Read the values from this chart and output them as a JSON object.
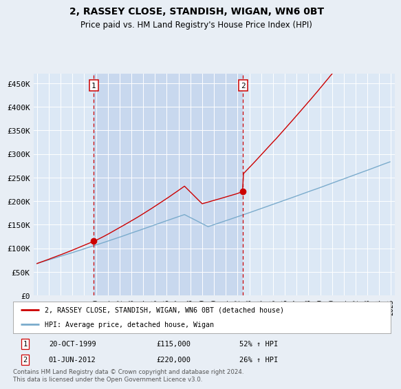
{
  "title": "2, RASSEY CLOSE, STANDISH, WIGAN, WN6 0BT",
  "subtitle": "Price paid vs. HM Land Registry's House Price Index (HPI)",
  "background_color": "#e8eef5",
  "plot_bg_color": "#dce8f5",
  "shade_color": "#c8d8ee",
  "legend_label_red": "2, RASSEY CLOSE, STANDISH, WIGAN, WN6 0BT (detached house)",
  "legend_label_blue": "HPI: Average price, detached house, Wigan",
  "footer": "Contains HM Land Registry data © Crown copyright and database right 2024.\nThis data is licensed under the Open Government Licence v3.0.",
  "sale1_date": "20-OCT-1999",
  "sale1_price": 115000,
  "sale1_price_str": "£115,000",
  "sale1_hpi": "52% ↑ HPI",
  "sale2_date": "01-JUN-2012",
  "sale2_price": 220000,
  "sale2_price_str": "£220,000",
  "sale2_hpi": "26% ↑ HPI",
  "ylim": [
    0,
    470000
  ],
  "yticks": [
    0,
    50000,
    100000,
    150000,
    200000,
    250000,
    300000,
    350000,
    400000,
    450000
  ],
  "red_color": "#cc0000",
  "blue_color": "#7aabcc",
  "vline_color": "#cc0000",
  "sale1_x": 1999.8,
  "sale2_x": 2012.45,
  "xlim_left": 1994.7,
  "xlim_right": 2025.3
}
